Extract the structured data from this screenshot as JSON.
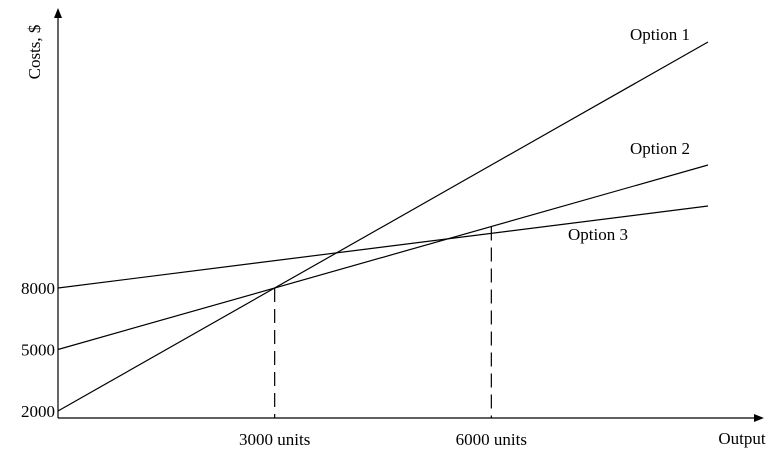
{
  "chart_data": {
    "type": "line",
    "title": "",
    "xlabel": "Output",
    "ylabel": "Costs, $",
    "x_markers": [
      {
        "x": 3000,
        "label": "3000 units"
      },
      {
        "x": 6000,
        "label": "6000 units"
      }
    ],
    "y_ticks": [
      {
        "value": 2000,
        "label": "2000"
      },
      {
        "value": 5000,
        "label": "5000"
      },
      {
        "value": 8000,
        "label": "8000"
      }
    ],
    "series": [
      {
        "name": "Option 1",
        "x": [
          0,
          9000
        ],
        "y": [
          2000,
          20000
        ]
      },
      {
        "name": "Option 2",
        "x": [
          0,
          9000
        ],
        "y": [
          5000,
          14000
        ]
      },
      {
        "name": "Option 3",
        "x": [
          0,
          9000
        ],
        "y": [
          8000,
          12000
        ]
      }
    ],
    "colors": {
      "lines": "#000000",
      "background": "#ffffff"
    },
    "grid": false,
    "legend": "labels at line ends"
  }
}
